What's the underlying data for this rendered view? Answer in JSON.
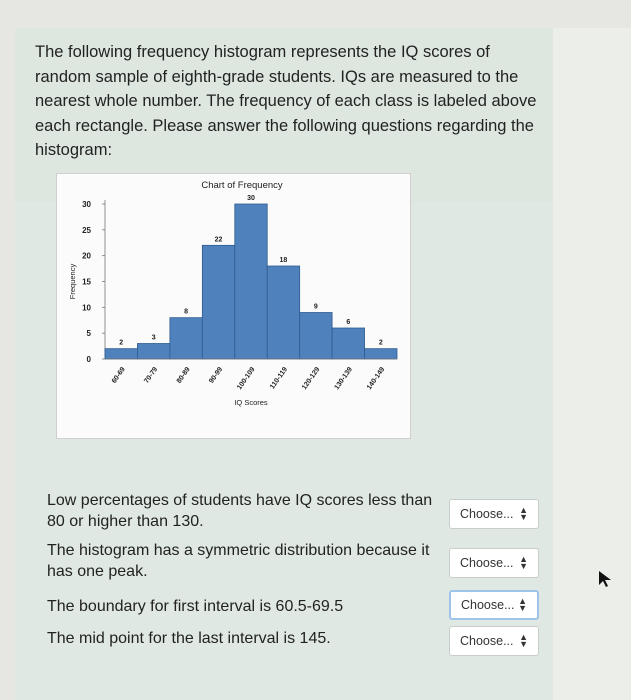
{
  "intro_text": "The following frequency histogram represents the IQ scores of random sample of eighth-grade students. IQs are measured to the nearest whole number. The frequency of each class is labeled above each rectangle. Please answer the following questions regarding the histogram:",
  "questions": [
    {
      "text": "Low percentages of students have IQ scores less than 80 or higher than 130.",
      "select_value": "Choose..."
    },
    {
      "text": "The histogram has a symmetric distribution because it has one peak.",
      "select_value": "Choose..."
    },
    {
      "text": "The boundary for first interval is 60.5-69.5",
      "select_value": "Choose..."
    },
    {
      "text": "The mid point for the last interval is 145.",
      "select_value": "Choose..."
    }
  ],
  "colors": {
    "bar": "#4f81bd",
    "bar_stroke": "#2f5d8f"
  },
  "chart_data": {
    "type": "bar",
    "title": "Chart of Frequency",
    "xlabel": "IQ Scores",
    "ylabel": "Frequency",
    "categories": [
      "60-69",
      "70-79",
      "80-89",
      "90-99",
      "100-109",
      "110-119",
      "120-129",
      "130-139",
      "140-149"
    ],
    "values": [
      2,
      3,
      8,
      22,
      30,
      18,
      9,
      6,
      2
    ],
    "yticks": [
      0,
      5,
      10,
      15,
      20,
      25,
      30
    ],
    "ylim": [
      0,
      30
    ]
  }
}
